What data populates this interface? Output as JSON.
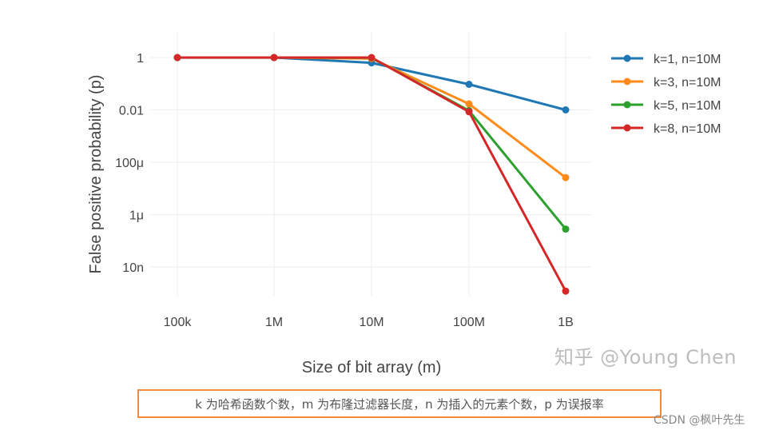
{
  "chart_data": {
    "type": "line",
    "xlabel": "Size of bit array (m)",
    "ylabel": "False positive probability (p)",
    "x_scale": "log",
    "y_scale": "log",
    "categories": [
      "100k",
      "1M",
      "10M",
      "100M",
      "1B"
    ],
    "x": [
      100000,
      1000000,
      10000000,
      100000000,
      1000000000
    ],
    "y_ticks": [
      {
        "label": "1",
        "value": 1
      },
      {
        "label": "0.01",
        "value": 0.01
      },
      {
        "label": "100μ",
        "value": 0.0001
      },
      {
        "label": "1μ",
        "value": 1e-06
      },
      {
        "label": "10n",
        "value": 1e-08
      }
    ],
    "ylim": [
      1e-09,
      2
    ],
    "grid": true,
    "legend_position": "top-right",
    "series": [
      {
        "name": "k=1, n=10M",
        "color": "#1f77b4",
        "values": [
          0.99,
          1.0,
          0.63,
          0.095,
          0.01
        ]
      },
      {
        "name": "k=3, n=10M",
        "color": "#ff8c1a",
        "values": [
          1.0,
          1.0,
          0.92,
          0.017,
          2.6e-05
        ]
      },
      {
        "name": "k=5, n=10M",
        "color": "#2ca02c",
        "values": [
          1.0,
          1.0,
          0.98,
          0.0094,
          2.8e-07
        ]
      },
      {
        "name": "k=8, n=10M",
        "color": "#d62728",
        "values": [
          1.0,
          1.0,
          1.0,
          0.0085,
          1.2e-09
        ]
      }
    ]
  },
  "watermark": "知乎 @Young Chen",
  "caption": "k 为哈希函数个数，m 为布隆过滤器长度，n 为插入的元素个数，p 为误报率",
  "credit": "CSDN @枫叶先生"
}
